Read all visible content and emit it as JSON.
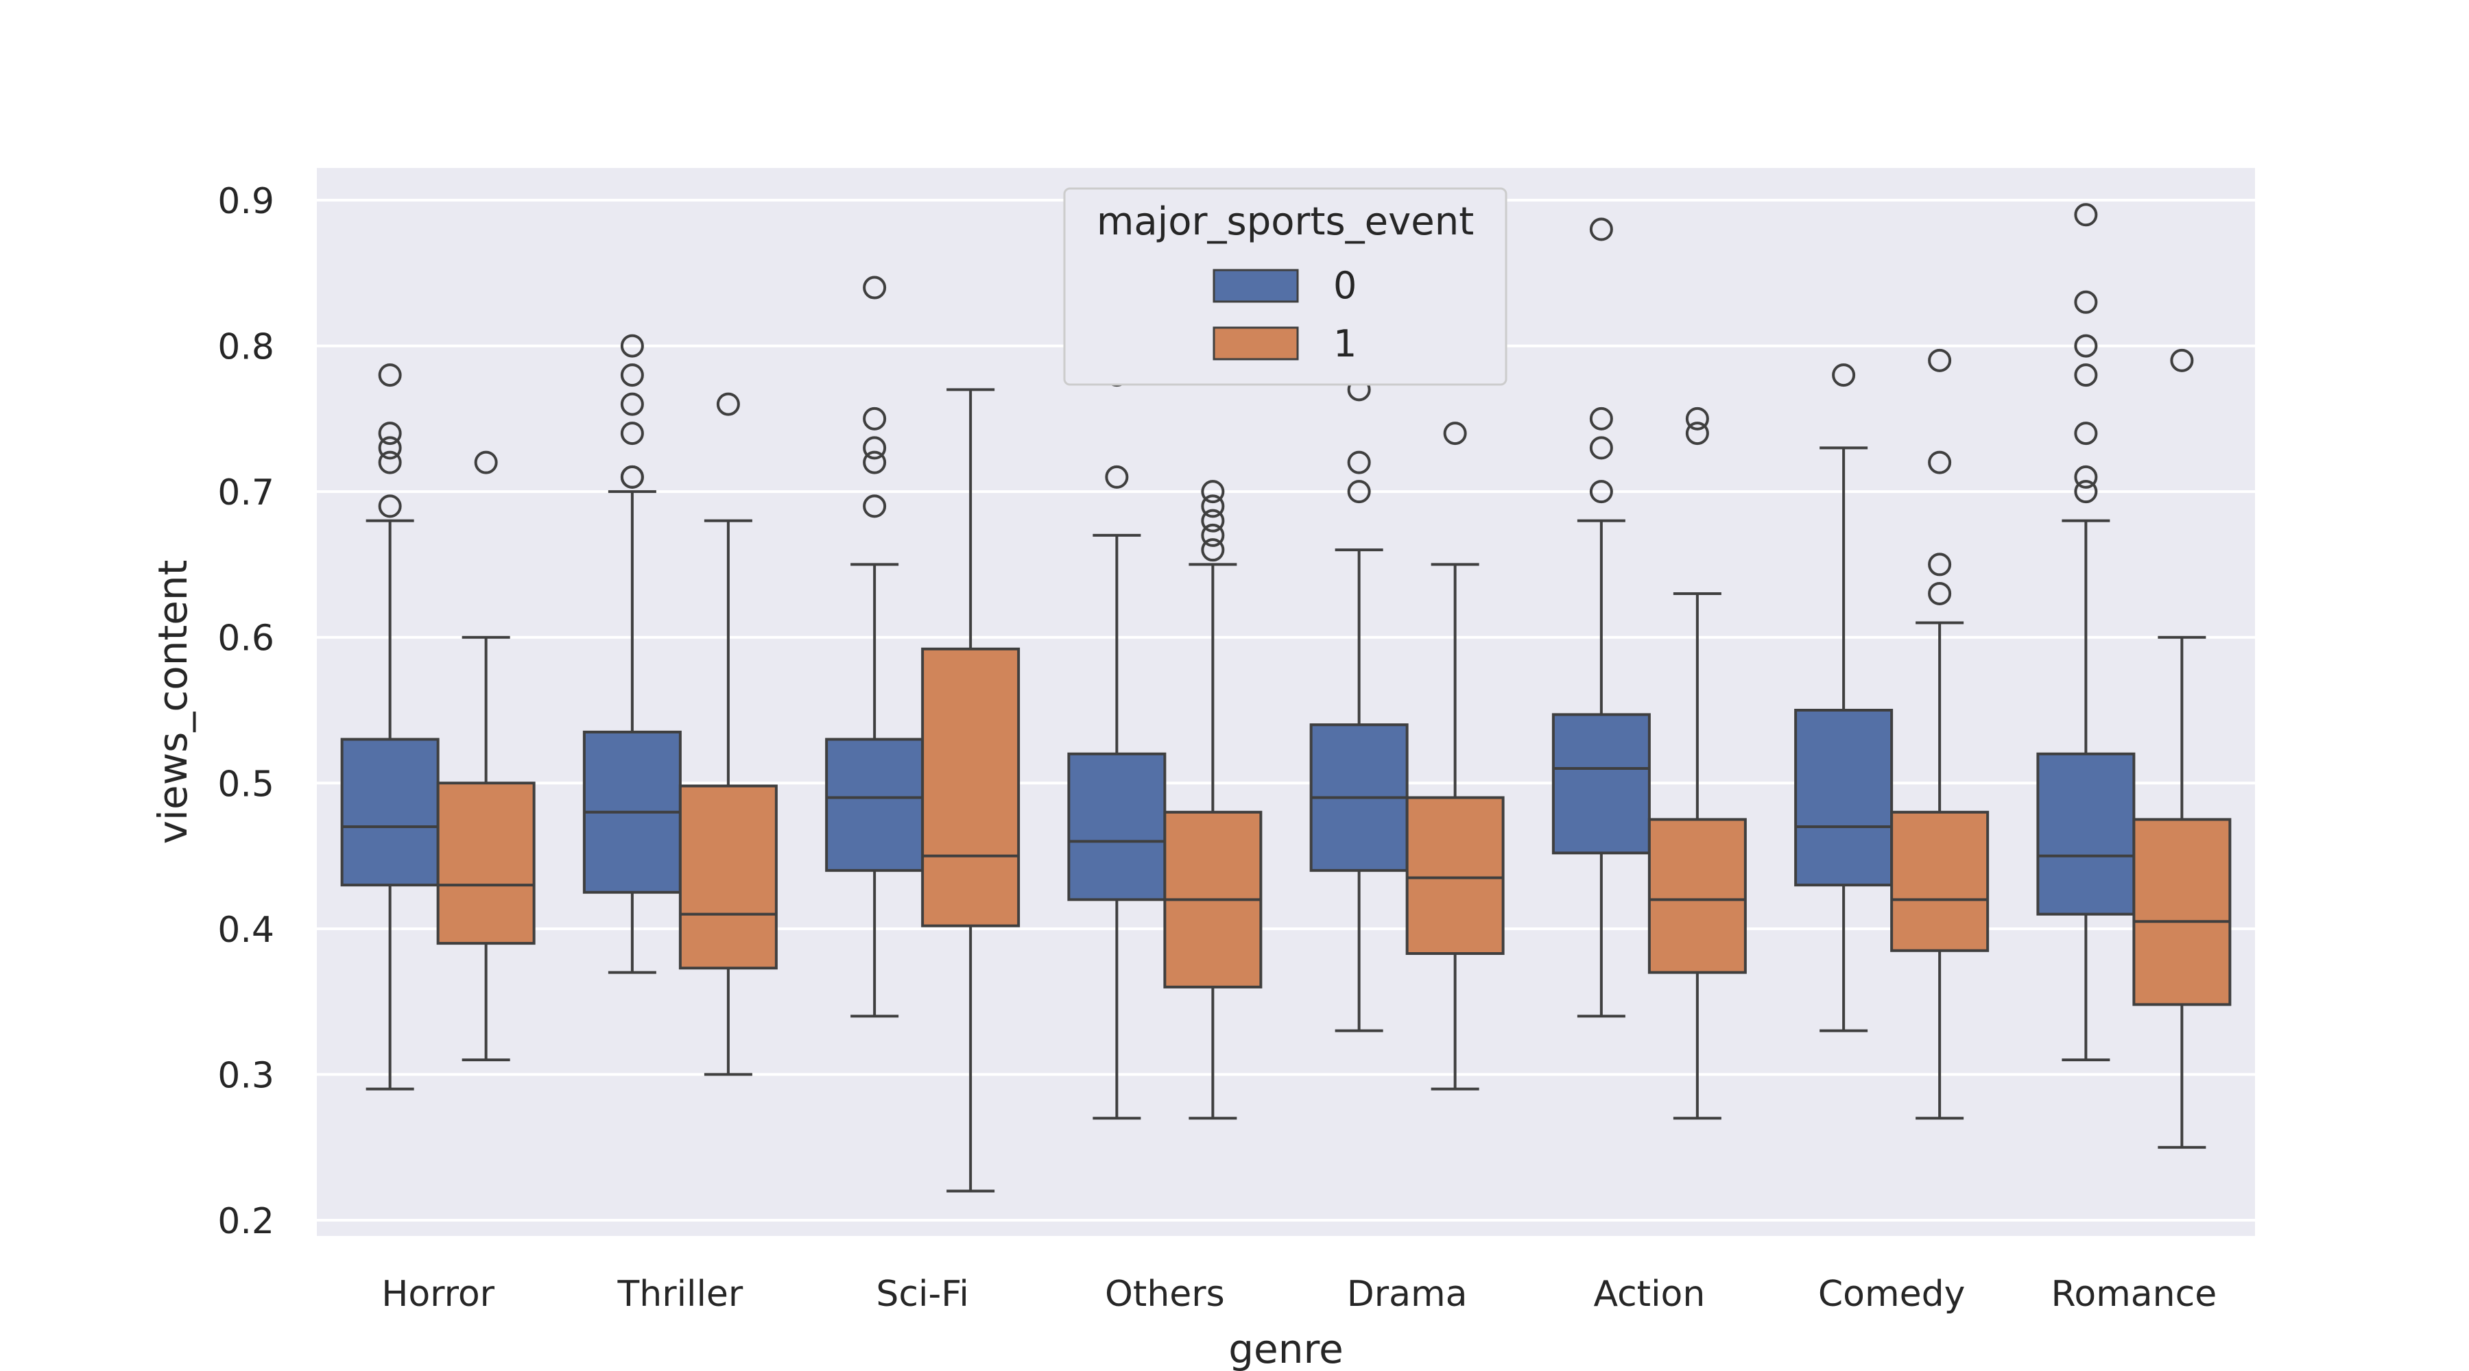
{
  "chart_data": {
    "type": "boxplot",
    "xlabel": "genre",
    "ylabel": "views_content",
    "ylim": [
      0.19,
      0.92
    ],
    "yticks": [
      "0.2",
      "0.3",
      "0.4",
      "0.5",
      "0.6",
      "0.7",
      "0.8",
      "0.9"
    ],
    "grid": true,
    "legend": {
      "title": "major_sports_event",
      "placement": "top-center",
      "entries": [
        "0",
        "1"
      ]
    },
    "categories": [
      "Horror",
      "Thriller",
      "Sci-Fi",
      "Others",
      "Drama",
      "Action",
      "Comedy",
      "Romance"
    ],
    "colors": {
      "0": "#5470a6",
      "1": "#d0855a",
      "background": "#eaeaf2",
      "line": "#3f3f3f"
    },
    "series": [
      {
        "name": "0",
        "boxes": [
          {
            "whislo": 0.29,
            "q1": 0.43,
            "med": 0.47,
            "q3": 0.53,
            "whishi": 0.68,
            "fliers": [
              0.69,
              0.72,
              0.73,
              0.74,
              0.78
            ]
          },
          {
            "whislo": 0.37,
            "q1": 0.425,
            "med": 0.48,
            "q3": 0.535,
            "whishi": 0.7,
            "fliers": [
              0.71,
              0.71,
              0.74,
              0.76,
              0.78,
              0.8
            ]
          },
          {
            "whislo": 0.34,
            "q1": 0.44,
            "med": 0.49,
            "q3": 0.53,
            "whishi": 0.65,
            "fliers": [
              0.69,
              0.72,
              0.73,
              0.75,
              0.84
            ]
          },
          {
            "whislo": 0.27,
            "q1": 0.42,
            "med": 0.46,
            "q3": 0.52,
            "whishi": 0.67,
            "fliers": [
              0.71,
              0.78,
              0.79,
              0.82
            ]
          },
          {
            "whislo": 0.33,
            "q1": 0.44,
            "med": 0.49,
            "q3": 0.54,
            "whishi": 0.66,
            "fliers": [
              0.7,
              0.72,
              0.77
            ]
          },
          {
            "whislo": 0.34,
            "q1": 0.452,
            "med": 0.51,
            "q3": 0.547,
            "whishi": 0.68,
            "fliers": [
              0.7,
              0.73,
              0.75,
              0.88
            ]
          },
          {
            "whislo": 0.33,
            "q1": 0.43,
            "med": 0.47,
            "q3": 0.55,
            "whishi": 0.73,
            "fliers": [
              0.78
            ]
          },
          {
            "whislo": 0.31,
            "q1": 0.41,
            "med": 0.45,
            "q3": 0.52,
            "whishi": 0.68,
            "fliers": [
              0.7,
              0.71,
              0.74,
              0.78,
              0.8,
              0.83,
              0.89
            ]
          }
        ]
      },
      {
        "name": "1",
        "boxes": [
          {
            "whislo": 0.31,
            "q1": 0.39,
            "med": 0.43,
            "q3": 0.5,
            "whishi": 0.6,
            "fliers": [
              0.72
            ]
          },
          {
            "whislo": 0.3,
            "q1": 0.373,
            "med": 0.41,
            "q3": 0.498,
            "whishi": 0.68,
            "fliers": [
              0.76
            ]
          },
          {
            "whislo": 0.22,
            "q1": 0.402,
            "med": 0.45,
            "q3": 0.592,
            "whishi": 0.77,
            "fliers": []
          },
          {
            "whislo": 0.27,
            "q1": 0.36,
            "med": 0.42,
            "q3": 0.48,
            "whishi": 0.65,
            "fliers": [
              0.66,
              0.67,
              0.68,
              0.69,
              0.7
            ]
          },
          {
            "whislo": 0.29,
            "q1": 0.383,
            "med": 0.435,
            "q3": 0.49,
            "whishi": 0.65,
            "fliers": [
              0.74
            ]
          },
          {
            "whislo": 0.27,
            "q1": 0.37,
            "med": 0.42,
            "q3": 0.475,
            "whishi": 0.63,
            "fliers": [
              0.74,
              0.75
            ]
          },
          {
            "whislo": 0.27,
            "q1": 0.385,
            "med": 0.42,
            "q3": 0.48,
            "whishi": 0.61,
            "fliers": [
              0.63,
              0.65,
              0.72,
              0.79
            ]
          },
          {
            "whislo": 0.25,
            "q1": 0.348,
            "med": 0.405,
            "q3": 0.475,
            "whishi": 0.6,
            "fliers": [
              0.79
            ]
          }
        ]
      }
    ]
  }
}
